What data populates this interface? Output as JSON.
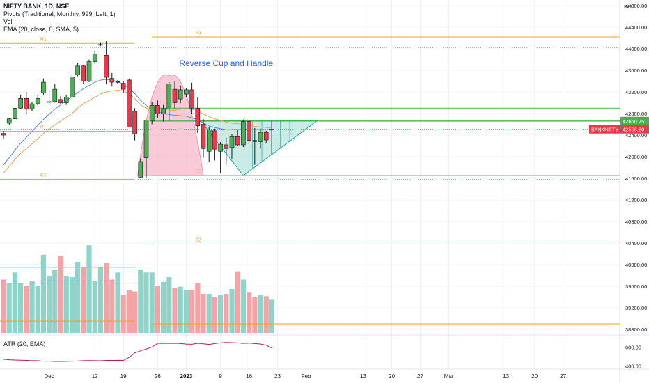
{
  "header": {
    "symbol_line": "NIFTY BANK, 1D, NSE",
    "pivots_line": "Pivots (Traditional, Monthly, 999, Left, 1)",
    "vol_line": "Vol",
    "ema_line": "EMA (20, close, 0, SMA, 5)",
    "atr_line": "ATR (20, EMA)",
    "currency": "INR"
  },
  "annotation": "Reverse Cup and Handle",
  "colors": {
    "up": "#4caf50",
    "down": "#f23645",
    "up_vol": "#8fd3c9",
    "down_vol": "#f4a4a7",
    "pivot": "#f7a21b",
    "pivot_green": "#4caf50",
    "ema": "#f2a05b",
    "ema2": "#5b8def",
    "cup": "#f7b3c6",
    "handle": "#a8ddd6",
    "atr": "#c2185b",
    "grid": "#f0f3fa",
    "text": "#131722",
    "blue": "#2962ff"
  },
  "chart_data": {
    "type": "candlestick",
    "y_axis": {
      "min": 38800,
      "max": 44800,
      "ticks": [
        44800,
        44400,
        44000,
        43600,
        43200,
        42800,
        42400,
        42000,
        41600,
        41200,
        40800,
        40400,
        40000,
        39600,
        39200,
        38800
      ]
    },
    "price_labels": [
      {
        "value": 42660.75,
        "text": "42660.75",
        "color": "#4caf50"
      },
      {
        "value": 42506.8,
        "text": "42506.80",
        "color": "#f23645"
      }
    ],
    "symbol_badge": "BANKNIFTY",
    "x_labels": [
      {
        "idx": 8,
        "text": "Dec"
      },
      {
        "idx": 16,
        "text": "12"
      },
      {
        "idx": 21,
        "text": "19"
      },
      {
        "idx": 27,
        "text": "26"
      },
      {
        "idx": 32,
        "text": "2023"
      },
      {
        "idx": 38,
        "text": "9"
      },
      {
        "idx": 43,
        "text": "16"
      },
      {
        "idx": 48,
        "text": "23"
      },
      {
        "idx": 53,
        "text": "Feb"
      },
      {
        "idx": 63,
        "text": "13"
      },
      {
        "idx": 68,
        "text": "20"
      },
      {
        "idx": 73,
        "text": "27"
      },
      {
        "idx": 78,
        "text": "Mar"
      },
      {
        "idx": 88,
        "text": "13"
      },
      {
        "idx": 93,
        "text": "20"
      },
      {
        "idx": 98,
        "text": "27"
      }
    ],
    "candles": [
      {
        "o": 42430,
        "h": 42480,
        "l": 42320,
        "c": 42400
      },
      {
        "o": 42620,
        "h": 42720,
        "l": 42580,
        "c": 42700
      },
      {
        "o": 42700,
        "h": 42920,
        "l": 42680,
        "c": 42900
      },
      {
        "o": 42900,
        "h": 43150,
        "l": 42880,
        "c": 43080
      },
      {
        "o": 43080,
        "h": 43200,
        "l": 42800,
        "c": 42880
      },
      {
        "o": 42880,
        "h": 43010,
        "l": 42840,
        "c": 42980
      },
      {
        "o": 42980,
        "h": 43150,
        "l": 42950,
        "c": 43080
      },
      {
        "o": 43180,
        "h": 43450,
        "l": 43150,
        "c": 43380
      },
      {
        "o": 43010,
        "h": 43200,
        "l": 42950,
        "c": 43020
      },
      {
        "o": 43020,
        "h": 43350,
        "l": 43000,
        "c": 43250
      },
      {
        "o": 43060,
        "h": 43120,
        "l": 42980,
        "c": 43000
      },
      {
        "o": 43000,
        "h": 43150,
        "l": 42960,
        "c": 43100
      },
      {
        "o": 43100,
        "h": 43520,
        "l": 43080,
        "c": 43480
      },
      {
        "o": 43520,
        "h": 43730,
        "l": 43490,
        "c": 43680
      },
      {
        "o": 43680,
        "h": 43700,
        "l": 43350,
        "c": 43400
      },
      {
        "o": 43400,
        "h": 43800,
        "l": 43380,
        "c": 43760
      },
      {
        "o": 43760,
        "h": 43960,
        "l": 43720,
        "c": 43900
      },
      {
        "o": 44080,
        "h": 44110,
        "l": 44050,
        "c": 44080
      },
      {
        "o": 43880,
        "h": 44140,
        "l": 43350,
        "c": 43470
      },
      {
        "o": 43450,
        "h": 43550,
        "l": 43300,
        "c": 43380
      },
      {
        "o": 43380,
        "h": 43420,
        "l": 43340,
        "c": 43390
      },
      {
        "o": 43360,
        "h": 43400,
        "l": 43180,
        "c": 43250
      },
      {
        "o": 43420,
        "h": 43440,
        "l": 42550,
        "c": 42550
      },
      {
        "o": 42840,
        "h": 42900,
        "l": 42300,
        "c": 42420
      },
      {
        "o": 41620,
        "h": 41970,
        "l": 41600,
        "c": 41910
      },
      {
        "o": 41980,
        "h": 42680,
        "l": 41600,
        "c": 42680
      },
      {
        "o": 42660,
        "h": 43010,
        "l": 42600,
        "c": 42950
      },
      {
        "o": 42950,
        "h": 43040,
        "l": 42710,
        "c": 42790
      },
      {
        "o": 42790,
        "h": 42960,
        "l": 42650,
        "c": 42890
      },
      {
        "o": 42880,
        "h": 43380,
        "l": 42680,
        "c": 43350
      },
      {
        "o": 43250,
        "h": 43400,
        "l": 42890,
        "c": 43000
      },
      {
        "o": 43070,
        "h": 43320,
        "l": 42990,
        "c": 43240
      },
      {
        "o": 43160,
        "h": 43270,
        "l": 43100,
        "c": 43240
      },
      {
        "o": 43240,
        "h": 43370,
        "l": 42800,
        "c": 42900
      },
      {
        "o": 42900,
        "h": 43100,
        "l": 42440,
        "c": 42570
      },
      {
        "o": 42600,
        "h": 42700,
        "l": 41980,
        "c": 42150
      },
      {
        "o": 42100,
        "h": 42550,
        "l": 41900,
        "c": 42500
      },
      {
        "o": 42480,
        "h": 42520,
        "l": 41930,
        "c": 42140
      },
      {
        "o": 42100,
        "h": 42270,
        "l": 41700,
        "c": 42230
      },
      {
        "o": 42220,
        "h": 42350,
        "l": 41850,
        "c": 42150
      },
      {
        "o": 42170,
        "h": 42420,
        "l": 41950,
        "c": 42370
      },
      {
        "o": 42370,
        "h": 42500,
        "l": 42200,
        "c": 42220
      },
      {
        "o": 42220,
        "h": 42690,
        "l": 42180,
        "c": 42650
      },
      {
        "o": 42650,
        "h": 42700,
        "l": 42250,
        "c": 42300
      },
      {
        "o": 42300,
        "h": 42530,
        "l": 41850,
        "c": 42280
      },
      {
        "o": 42280,
        "h": 42520,
        "l": 42150,
        "c": 42450
      },
      {
        "o": 42450,
        "h": 42480,
        "l": 42260,
        "c": 42310
      },
      {
        "o": 42500,
        "h": 42690,
        "l": 42420,
        "c": 42510
      }
    ],
    "ema_values": [
      41700,
      41820,
      41950,
      42060,
      42150,
      42240,
      42330,
      42430,
      42510,
      42590,
      42660,
      42730,
      42800,
      42900,
      42980,
      43040,
      43100,
      43160,
      43200,
      43220,
      43230,
      43220,
      43170,
      43080,
      42960,
      42900,
      42870,
      42850,
      42840,
      42850,
      42860,
      42880,
      42890,
      42880,
      42850,
      42790,
      42740,
      42700,
      42670,
      42640,
      42620,
      42610,
      42600,
      42580,
      42560,
      42550,
      42540,
      42530
    ],
    "ema2_values": [
      41850,
      41980,
      42120,
      42250,
      42360,
      42470,
      42580,
      42690,
      42790,
      42880,
      42960,
      43040,
      43110,
      43190,
      43260,
      43320,
      43380,
      43420,
      43430,
      43420,
      43390,
      43340,
      43270,
      43170,
      43040,
      42950,
      42880,
      42840,
      42800,
      42780,
      42770,
      42760,
      42750,
      42720,
      42680,
      42620,
      42570,
      42540,
      42520,
      42500,
      42500,
      42500,
      42510,
      42510,
      42500,
      42500,
      42500,
      42490
    ],
    "pivot_levels": [
      {
        "label": "R1",
        "value": 44100,
        "from": -1,
        "to": 23
      },
      {
        "label": "R1",
        "value": 44220,
        "from": 26,
        "to": 120
      },
      {
        "label": "P",
        "value": 42470,
        "from": -1,
        "to": 23
      },
      {
        "label": "S1",
        "value": 41580,
        "from": -1,
        "to": 23
      },
      {
        "label": "S1",
        "value": 41650,
        "from": 26,
        "to": 120
      },
      {
        "label": "S2",
        "value": 40380,
        "from": 26,
        "to": 120
      },
      {
        "label": "S2",
        "value": 39950,
        "from": -1,
        "to": 23
      }
    ],
    "volumes": [
      45,
      42,
      51,
      42,
      40,
      44,
      40,
      66,
      48,
      53,
      65,
      48,
      47,
      60,
      55,
      74,
      44,
      56,
      59,
      45,
      51,
      32,
      36,
      35,
      53,
      51,
      51,
      40,
      43,
      47,
      38,
      39,
      36,
      36,
      42,
      33,
      33,
      30,
      32,
      33,
      37,
      52,
      45,
      34,
      30,
      32,
      31,
      28
    ],
    "volume_level_lines": [
      {
        "label": "S2",
        "value": 42
      },
      {
        "label": "S1",
        "value": 10
      }
    ],
    "atr_axis": {
      "ticks": [
        600,
        400
      ]
    },
    "atr_values": [
      470,
      465,
      462,
      460,
      458,
      455,
      455,
      450,
      450,
      447,
      447,
      448,
      450,
      452,
      455,
      456,
      455,
      454,
      458,
      458,
      459,
      458,
      490,
      540,
      560,
      580,
      600,
      640,
      640,
      640,
      640,
      638,
      632,
      630,
      640,
      635,
      628,
      638,
      645,
      650,
      648,
      645,
      640,
      642,
      638,
      633,
      620,
      590
    ]
  }
}
